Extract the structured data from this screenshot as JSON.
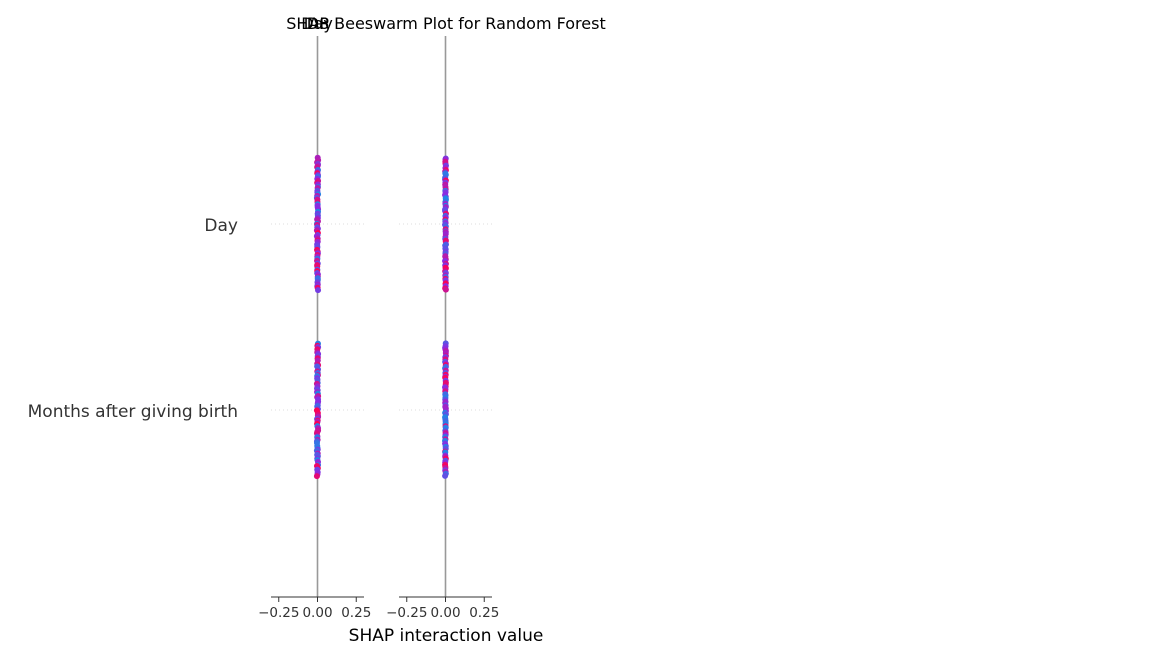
{
  "chart_data": {
    "type": "scatter",
    "title": "SHAP Beeswarm Plot for Random Forest",
    "xlabel": "SHAP interaction value",
    "features": [
      "Day",
      "Months after giving birth"
    ],
    "panel_titles": [
      "Day",
      "D8"
    ],
    "xlim": [
      -0.3,
      0.3
    ],
    "xticks": [
      -0.25,
      0.0,
      0.25
    ],
    "xtick_labels": [
      "−0.25",
      "0.00",
      "0.25"
    ],
    "grid": false,
    "colors": {
      "high": "#ff0052",
      "mid": "#8a2be2",
      "low": "#1e88e5",
      "zero_line": "#999999",
      "axis": "#333333",
      "row_guide": "#dddddd"
    },
    "panels": [
      {
        "name": "Day",
        "series": [
          {
            "feature": "Day",
            "shap_values_spread": [
              -0.004,
              0.004
            ]
          },
          {
            "feature": "Months after giving birth",
            "shap_values_spread": [
              -0.004,
              0.004
            ]
          }
        ]
      },
      {
        "name": "D8",
        "series": [
          {
            "feature": "Day",
            "shap_values_spread": [
              -0.003,
              0.003
            ]
          },
          {
            "feature": "Months after giving birth",
            "shap_values_spread": [
              -0.003,
              0.003
            ]
          }
        ]
      }
    ]
  }
}
